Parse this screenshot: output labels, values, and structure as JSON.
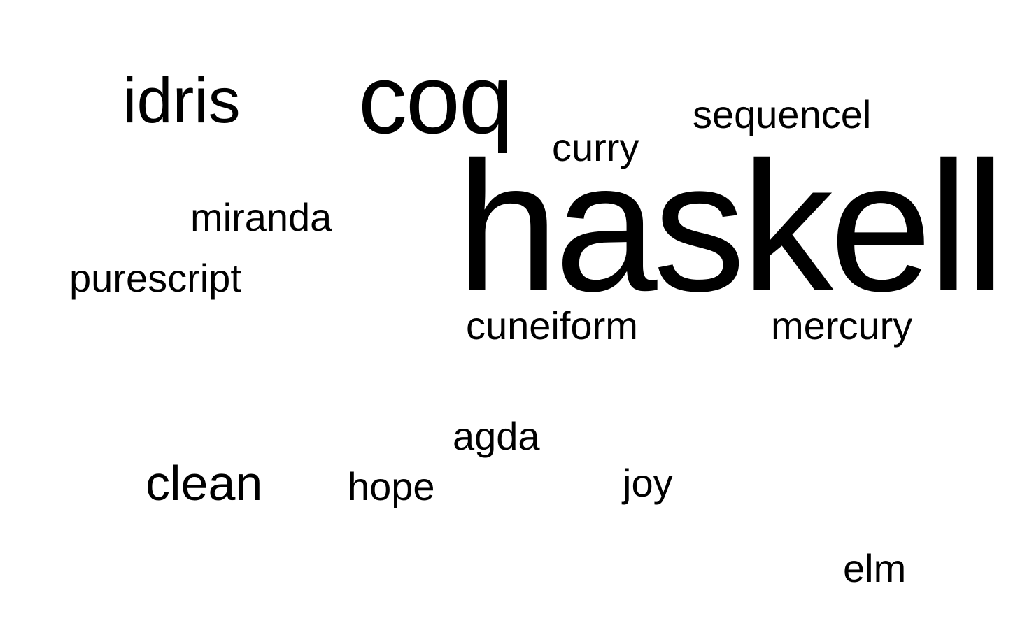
{
  "words": {
    "haskell": "haskell",
    "coq": "coq",
    "idris": "idris",
    "sequencel": "sequencel",
    "curry": "curry",
    "miranda": "miranda",
    "purescript": "purescript",
    "cuneiform": "cuneiform",
    "mercury": "mercury",
    "agda": "agda",
    "clean": "clean",
    "hope": "hope",
    "joy": "joy",
    "elm": "elm"
  },
  "colors": {
    "text": "#000000",
    "background": "#ffffff"
  }
}
